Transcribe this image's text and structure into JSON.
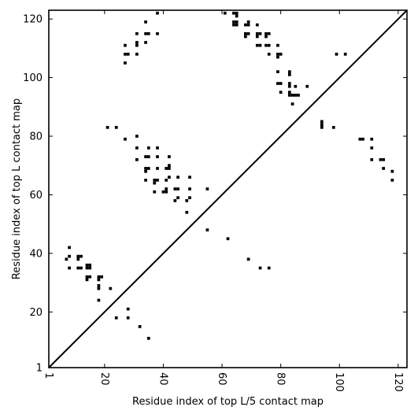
{
  "chart_data": {
    "type": "scatter",
    "title": "",
    "xlabel": "Residue index of top L/5 contact map",
    "ylabel": "Residue index of top L contact map",
    "xlim": [
      1,
      123
    ],
    "ylim": [
      1,
      123
    ],
    "x_ticks": [
      {
        "value": 1,
        "label": "1"
      },
      {
        "value": 20,
        "label": "20"
      },
      {
        "value": 40,
        "label": "40"
      },
      {
        "value": 60,
        "label": "60"
      },
      {
        "value": 80,
        "label": "80"
      },
      {
        "value": 100,
        "label": "100"
      },
      {
        "value": 120,
        "label": "120"
      }
    ],
    "y_ticks": [
      {
        "value": 1,
        "label": "1"
      },
      {
        "value": 20,
        "label": "20"
      },
      {
        "value": 40,
        "label": "40"
      },
      {
        "value": 60,
        "label": "60"
      },
      {
        "value": 80,
        "label": "80"
      },
      {
        "value": 100,
        "label": "100"
      },
      {
        "value": 120,
        "label": "120"
      }
    ],
    "x_tick_rotation": "vertical",
    "grid": false,
    "legend": "none",
    "colors": {
      "points": "#000000",
      "diagonal": "#000000",
      "frame": "#000000"
    },
    "diagonal": {
      "from": [
        1,
        1
      ],
      "to": [
        123,
        123
      ]
    },
    "upper_points": [
      [
        27,
        111
      ],
      [
        27,
        108
      ],
      [
        28,
        108
      ],
      [
        27,
        105
      ],
      [
        31,
        115
      ],
      [
        31,
        112
      ],
      [
        31,
        111
      ],
      [
        31,
        108
      ],
      [
        34,
        119
      ],
      [
        34,
        115
      ],
      [
        35,
        115
      ],
      [
        34,
        112
      ],
      [
        38,
        122
      ],
      [
        38,
        115
      ],
      [
        61,
        122
      ],
      [
        64,
        122
      ],
      [
        65,
        122
      ],
      [
        65,
        121
      ],
      [
        64,
        119
      ],
      [
        65,
        119
      ],
      [
        64,
        118
      ],
      [
        65,
        118
      ],
      [
        68,
        118
      ],
      [
        69,
        118
      ],
      [
        69,
        119
      ],
      [
        68,
        115
      ],
      [
        69,
        115
      ],
      [
        68,
        114
      ],
      [
        72,
        118
      ],
      [
        72,
        115
      ],
      [
        73,
        115
      ],
      [
        72,
        114
      ],
      [
        72,
        111
      ],
      [
        73,
        111
      ],
      [
        75,
        115
      ],
      [
        76,
        115
      ],
      [
        75,
        114
      ],
      [
        75,
        111
      ],
      [
        76,
        111
      ],
      [
        76,
        108
      ],
      [
        79,
        111
      ],
      [
        79,
        108
      ],
      [
        80,
        108
      ],
      [
        79,
        107
      ],
      [
        79,
        102
      ],
      [
        79,
        98
      ],
      [
        80,
        98
      ],
      [
        80,
        95
      ],
      [
        83,
        102
      ],
      [
        83,
        101
      ],
      [
        83,
        98
      ],
      [
        83,
        97
      ],
      [
        83,
        95
      ],
      [
        83,
        94
      ],
      [
        84,
        94
      ],
      [
        85,
        94
      ],
      [
        86,
        94
      ],
      [
        85,
        97
      ],
      [
        84,
        91
      ],
      [
        89,
        97
      ],
      [
        99,
        108
      ],
      [
        102,
        108
      ]
    ],
    "lower_points": [
      [
        8,
        42
      ],
      [
        8,
        39
      ],
      [
        7,
        38
      ],
      [
        8,
        35
      ],
      [
        11,
        39
      ],
      [
        12,
        39
      ],
      [
        11,
        38
      ],
      [
        11,
        35
      ],
      [
        12,
        35
      ],
      [
        14,
        36
      ],
      [
        15,
        36
      ],
      [
        14,
        35
      ],
      [
        15,
        35
      ],
      [
        14,
        32
      ],
      [
        15,
        32
      ],
      [
        14,
        31
      ],
      [
        18,
        32
      ],
      [
        19,
        32
      ],
      [
        18,
        31
      ],
      [
        18,
        29
      ],
      [
        18,
        28
      ],
      [
        18,
        24
      ],
      [
        22,
        28
      ],
      [
        21,
        83
      ],
      [
        24,
        83
      ],
      [
        27,
        79
      ],
      [
        31,
        80
      ],
      [
        31,
        76
      ],
      [
        31,
        72
      ],
      [
        34,
        73
      ],
      [
        35,
        73
      ],
      [
        35,
        76
      ],
      [
        34,
        69
      ],
      [
        35,
        69
      ],
      [
        34,
        68
      ],
      [
        34,
        65
      ],
      [
        37,
        65
      ],
      [
        38,
        65
      ],
      [
        37,
        64
      ],
      [
        37,
        61
      ],
      [
        38,
        76
      ],
      [
        38,
        73
      ],
      [
        38,
        69
      ],
      [
        41,
        69
      ],
      [
        42,
        69
      ],
      [
        42,
        70
      ],
      [
        42,
        73
      ],
      [
        41,
        65
      ],
      [
        42,
        66
      ],
      [
        41,
        62
      ],
      [
        40,
        61
      ],
      [
        41,
        61
      ],
      [
        45,
        66
      ],
      [
        44,
        62
      ],
      [
        45,
        62
      ],
      [
        45,
        59
      ],
      [
        44,
        58
      ],
      [
        48,
        58
      ],
      [
        49,
        59
      ],
      [
        49,
        62
      ],
      [
        49,
        66
      ],
      [
        48,
        54
      ],
      [
        55,
        62
      ],
      [
        55,
        48
      ],
      [
        62,
        45
      ],
      [
        69,
        38
      ],
      [
        73,
        35
      ],
      [
        76,
        35
      ],
      [
        94,
        85
      ],
      [
        94,
        84
      ],
      [
        94,
        83
      ],
      [
        98,
        83
      ],
      [
        107,
        79
      ],
      [
        108,
        79
      ],
      [
        111,
        79
      ],
      [
        111,
        76
      ],
      [
        111,
        72
      ],
      [
        114,
        72
      ],
      [
        115,
        72
      ],
      [
        115,
        69
      ],
      [
        118,
        68
      ],
      [
        118,
        65
      ],
      [
        24,
        18
      ],
      [
        28,
        21
      ],
      [
        28,
        18
      ],
      [
        32,
        15
      ],
      [
        35,
        11
      ]
    ]
  }
}
